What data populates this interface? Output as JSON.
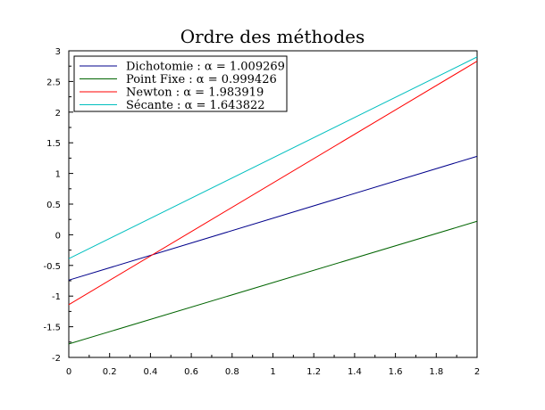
{
  "chart_data": {
    "type": "line",
    "title": "Ordre des méthodes",
    "xlabel": "",
    "ylabel": "",
    "xlim": [
      0,
      2
    ],
    "ylim": [
      -2,
      3
    ],
    "x_ticks": [
      0,
      0.2,
      0.4,
      0.6,
      0.8,
      1,
      1.2,
      1.4,
      1.6,
      1.8,
      2
    ],
    "x_tick_labels": [
      "0",
      "0.2",
      "0.4",
      "0.6",
      "0.8",
      "1",
      "1.2",
      "1.4",
      "1.6",
      "1.8",
      "2"
    ],
    "y_ticks": [
      -2,
      -1.5,
      -1,
      -0.5,
      0,
      0.5,
      1,
      1.5,
      2,
      2.5,
      3
    ],
    "y_tick_labels": [
      "-2",
      "-1.5",
      "-1",
      "-0.5",
      "0",
      "0.5",
      "1",
      "1.5",
      "2",
      "2.5",
      "3"
    ],
    "grid": false,
    "legend_position": "top-left",
    "series": [
      {
        "name": "Dichotomie : α = 1.009269",
        "color": "#00008b",
        "x": [
          0,
          2
        ],
        "y": [
          -0.74,
          1.28
        ]
      },
      {
        "name": "Point Fixe : α = 0.999426",
        "color": "#006400",
        "x": [
          0,
          2
        ],
        "y": [
          -1.78,
          0.22
        ]
      },
      {
        "name": "Newton : α = 1.983919",
        "color": "#ff0000",
        "x": [
          0,
          2
        ],
        "y": [
          -1.14,
          2.83
        ]
      },
      {
        "name": "Sécante : α = 1.643822",
        "color": "#00bfbf",
        "x": [
          0,
          2
        ],
        "y": [
          -0.39,
          2.9
        ]
      }
    ]
  }
}
